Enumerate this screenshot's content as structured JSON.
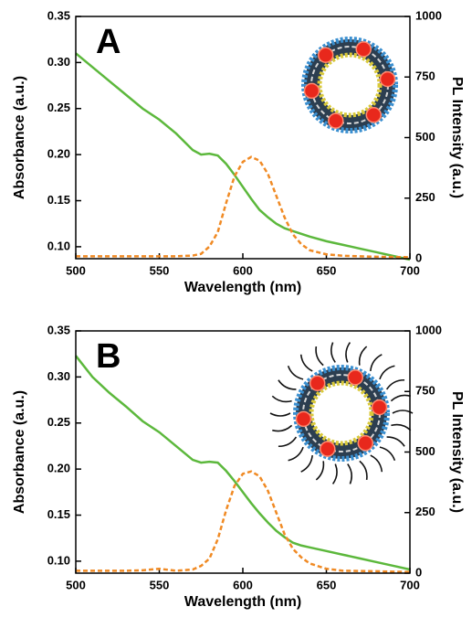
{
  "chart_data": [
    {
      "type": "line",
      "label": "A",
      "xlabel": "Wavelength (nm)",
      "ylabel": "Absorbance (a.u.)",
      "y2label": "PL Intensity (a.u.)",
      "xlim": [
        500,
        700
      ],
      "xticks": [
        500,
        550,
        600,
        650,
        700
      ],
      "ylim": [
        0.087,
        0.35
      ],
      "yticks": [
        {
          "value": 0.1,
          "label": "0.10"
        },
        0.15,
        {
          "value": 0.2,
          "label": "0.20"
        },
        0.25,
        {
          "value": 0.3,
          "label": "0.30"
        },
        0.35
      ],
      "y2lim": [
        0,
        1000
      ],
      "y2ticks": [
        0,
        250,
        500,
        750,
        1000
      ],
      "x": [
        500,
        510,
        520,
        530,
        540,
        550,
        560,
        570,
        575,
        580,
        585,
        590,
        595,
        600,
        605,
        610,
        615,
        620,
        625,
        630,
        635,
        640,
        650,
        660,
        670,
        680,
        690,
        700
      ],
      "series": [
        {
          "color": "#5cb83c",
          "dash": false,
          "axis": "y",
          "values": [
            0.31,
            0.295,
            0.28,
            0.265,
            0.25,
            0.238,
            0.223,
            0.205,
            0.2,
            0.201,
            0.199,
            0.19,
            0.178,
            0.165,
            0.152,
            0.14,
            0.132,
            0.125,
            0.12,
            0.117,
            0.114,
            0.111,
            0.106,
            0.102,
            0.098,
            0.094,
            0.09,
            0.086
          ]
        },
        {
          "color": "#f08a24",
          "dash": true,
          "axis": "y2",
          "values": [
            10,
            10,
            10,
            10,
            10,
            10,
            10,
            13,
            20,
            50,
            110,
            230,
            340,
            400,
            420,
            405,
            350,
            260,
            170,
            100,
            60,
            35,
            18,
            12,
            10,
            8,
            7,
            6
          ]
        }
      ]
    },
    {
      "type": "line",
      "label": "B",
      "xlabel": "Wavelength (nm)",
      "ylabel": "Absorbance (a.u.)",
      "y2label": "PL Intensity (a.u.)",
      "xlim": [
        500,
        700
      ],
      "xticks": [
        500,
        550,
        600,
        650,
        700
      ],
      "ylim": [
        0.087,
        0.35
      ],
      "yticks": [
        {
          "value": 0.1,
          "label": "0.10"
        },
        0.15,
        {
          "value": 0.2,
          "label": "0.20"
        },
        0.25,
        {
          "value": 0.3,
          "label": "0.30"
        },
        0.35
      ],
      "y2lim": [
        0,
        1000
      ],
      "y2ticks": [
        0,
        250,
        500,
        750,
        1000
      ],
      "x": [
        500,
        510,
        520,
        530,
        540,
        550,
        560,
        570,
        575,
        580,
        585,
        590,
        595,
        600,
        605,
        610,
        615,
        620,
        625,
        630,
        635,
        640,
        650,
        660,
        670,
        680,
        690,
        700
      ],
      "series": [
        {
          "color": "#5cb83c",
          "dash": false,
          "axis": "y",
          "values": [
            0.323,
            0.3,
            0.283,
            0.268,
            0.252,
            0.24,
            0.225,
            0.21,
            0.207,
            0.208,
            0.207,
            0.198,
            0.187,
            0.175,
            0.163,
            0.152,
            0.142,
            0.133,
            0.126,
            0.12,
            0.117,
            0.115,
            0.111,
            0.107,
            0.103,
            0.099,
            0.095,
            0.091
          ]
        },
        {
          "color": "#f08a24",
          "dash": true,
          "axis": "y2",
          "values": [
            10,
            10,
            10,
            10,
            12,
            18,
            10,
            15,
            30,
            60,
            140,
            260,
            360,
            410,
            420,
            400,
            340,
            250,
            160,
            100,
            65,
            40,
            18,
            10,
            9,
            8,
            6,
            5
          ]
        }
      ]
    }
  ]
}
